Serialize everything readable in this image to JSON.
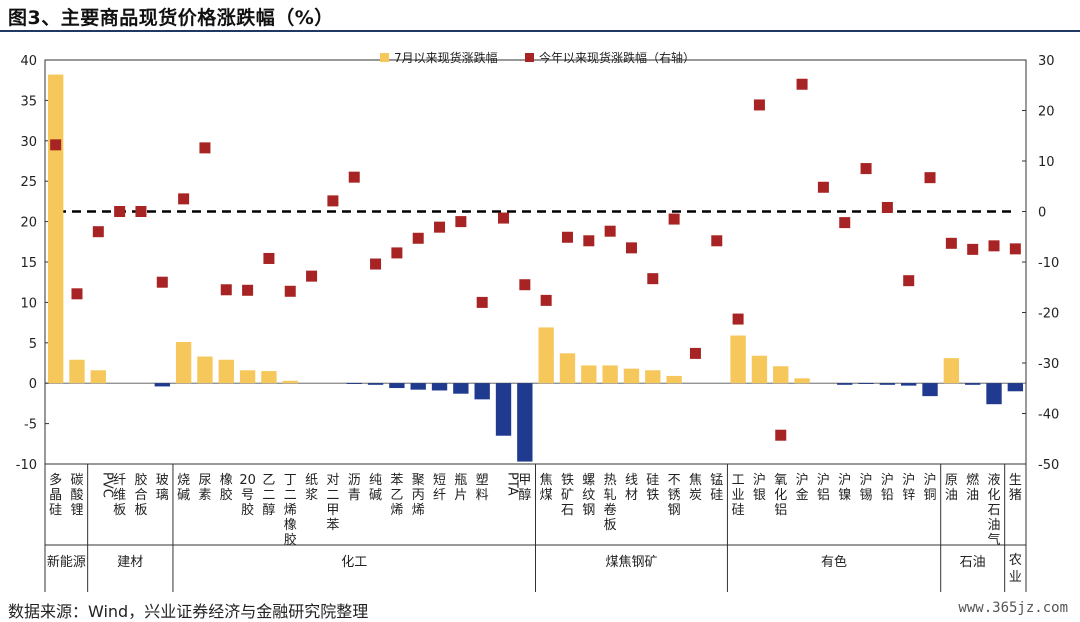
{
  "header": {
    "title": "图3、主要商品现货价格涨跌幅（%）"
  },
  "footer": {
    "source": "数据来源：Wind，兴业证券经济与金融研究院整理",
    "watermark": "www.365jz.com"
  },
  "colors": {
    "bar_positive": "#f6c75a",
    "bar_negative": "#1f3a8f",
    "marker": "#a82323",
    "zero_line": "#000000"
  },
  "chart_data": {
    "type": "bar",
    "legend_position": "top-center",
    "grid": false,
    "categories": [
      "多晶硅",
      "碳酸锂",
      "PVC",
      "纤维板",
      "胶合板",
      "玻璃",
      "烧碱",
      "尿素",
      "橡胶",
      "20号胶",
      "乙二醇",
      "丁二烯橡胶",
      "纸浆",
      "对二甲苯",
      "沥青",
      "纯碱",
      "苯乙烯",
      "聚丙烯",
      "短纤",
      "瓶片",
      "塑料",
      "PTA",
      "甲醇",
      "焦煤",
      "铁矿石",
      "螺纹钢",
      "热轧卷板",
      "线材",
      "硅铁",
      "不锈钢",
      "焦炭",
      "锰硅",
      "工业硅",
      "沪银",
      "氧化铝",
      "沪金",
      "沪铝",
      "沪镍",
      "沪锡",
      "沪铅",
      "沪锌",
      "沪铜",
      "原油",
      "燃油",
      "液化石油气",
      "生猪"
    ],
    "groups": [
      {
        "name": "新能源",
        "count": 2
      },
      {
        "name": "建材",
        "count": 4
      },
      {
        "name": "化工",
        "count": 17
      },
      {
        "name": "煤焦钢矿",
        "count": 9
      },
      {
        "name": "有色",
        "count": 10
      },
      {
        "name": "石油",
        "count": 3
      },
      {
        "name": "农业",
        "count": 1
      }
    ],
    "y_left_ticks": [
      "-10",
      "-5",
      "0",
      "5",
      "10",
      "15",
      "20",
      "25",
      "30",
      "35",
      "40"
    ],
    "y_right_ticks": [
      "-50",
      "-40",
      "-30",
      "-20",
      "-10",
      "0",
      "10",
      "20",
      "30"
    ],
    "ylim_left": [
      -10,
      40
    ],
    "ylim_right": [
      -50,
      30
    ],
    "series": [
      {
        "name": "7月以来现货涨跌幅",
        "type": "bar",
        "axis": "left",
        "values": [
          38.2,
          2.9,
          1.6,
          0,
          0,
          -0.4,
          5.1,
          3.3,
          2.9,
          1.6,
          1.5,
          0.3,
          0,
          0,
          -0.1,
          -0.2,
          -0.6,
          -0.8,
          -0.9,
          -1.3,
          -2.0,
          -6.5,
          -9.7,
          6.9,
          3.7,
          2.2,
          2.2,
          1.8,
          1.6,
          0.9,
          0,
          0,
          5.9,
          3.4,
          2.1,
          0.6,
          0,
          -0.2,
          -0.1,
          -0.2,
          -0.3,
          -1.6,
          3.1,
          -0.2,
          -2.6,
          -1.0
        ]
      },
      {
        "name": "今年以来现货涨跌幅（右轴）",
        "type": "scatter",
        "axis": "right",
        "values": [
          13.2,
          -16.3,
          -4.0,
          0,
          0,
          -14.0,
          2.5,
          12.6,
          -15.5,
          -15.6,
          -9.3,
          -15.8,
          -12.8,
          2.1,
          6.8,
          -10.4,
          -8.2,
          -5.3,
          -3.1,
          -2.0,
          -18.0,
          -1.3,
          -14.5,
          -17.6,
          -5.1,
          -5.8,
          -3.9,
          -7.2,
          -13.3,
          -1.5,
          -28.1,
          -5.8,
          -21.3,
          21.1,
          -44.3,
          25.2,
          4.8,
          -2.2,
          8.5,
          0.8,
          -13.7,
          6.7,
          -6.3,
          -7.5,
          -6.8,
          -7.4
        ]
      }
    ]
  }
}
